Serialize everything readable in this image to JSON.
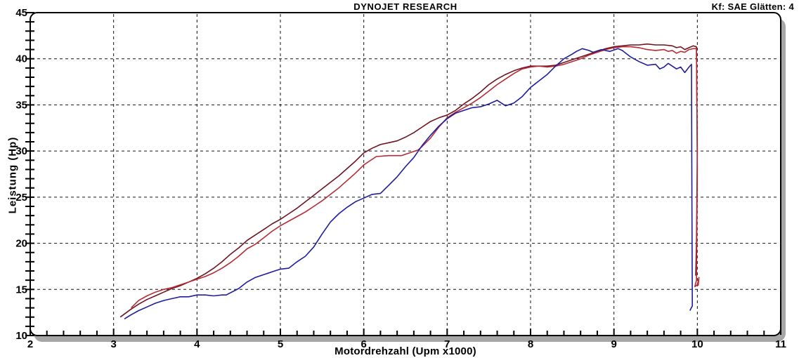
{
  "header": {
    "title": "DYNOJET RESEARCH",
    "settings_label": "Kf: SAE  Glätten: 4"
  },
  "chart_data": {
    "type": "line",
    "title": "DYNOJET RESEARCH",
    "xlabel": "Motordrehzahl (Upm x1000)",
    "ylabel": "Leistung (Hp)",
    "xlim": [
      2,
      11
    ],
    "ylim": [
      10,
      45
    ],
    "x_ticks": [
      2,
      3,
      4,
      5,
      6,
      7,
      8,
      9,
      10,
      11
    ],
    "y_ticks": [
      10,
      15,
      20,
      25,
      30,
      35,
      40,
      45
    ],
    "x_minor_step": 0.2,
    "y_minor_step": 1,
    "grid": "dashed black lines at interior major ticks",
    "legend": "none",
    "colors": {
      "background": "#ffffff",
      "frame_border": "#000000",
      "frame_shadow": "#a6a6a6",
      "grid": "#111111"
    },
    "series": [
      {
        "name": "dark-red",
        "color": "#6e1420",
        "points": [
          [
            3.08,
            12.0
          ],
          [
            3.2,
            12.8
          ],
          [
            3.3,
            13.4
          ],
          [
            3.4,
            13.9
          ],
          [
            3.5,
            14.3
          ],
          [
            3.6,
            14.7
          ],
          [
            3.7,
            15.1
          ],
          [
            3.8,
            15.4
          ],
          [
            3.9,
            15.8
          ],
          [
            4.0,
            16.2
          ],
          [
            4.1,
            16.7
          ],
          [
            4.2,
            17.3
          ],
          [
            4.3,
            18.0
          ],
          [
            4.4,
            18.8
          ],
          [
            4.5,
            19.5
          ],
          [
            4.6,
            20.3
          ],
          [
            4.7,
            20.9
          ],
          [
            4.8,
            21.5
          ],
          [
            4.9,
            22.1
          ],
          [
            5.0,
            22.6
          ],
          [
            5.1,
            23.2
          ],
          [
            5.2,
            23.8
          ],
          [
            5.3,
            24.5
          ],
          [
            5.4,
            25.2
          ],
          [
            5.5,
            25.9
          ],
          [
            5.6,
            26.6
          ],
          [
            5.7,
            27.3
          ],
          [
            5.8,
            28.1
          ],
          [
            5.9,
            28.9
          ],
          [
            6.0,
            29.8
          ],
          [
            6.1,
            30.3
          ],
          [
            6.2,
            30.7
          ],
          [
            6.3,
            30.9
          ],
          [
            6.4,
            31.1
          ],
          [
            6.5,
            31.5
          ],
          [
            6.6,
            32.0
          ],
          [
            6.7,
            32.6
          ],
          [
            6.8,
            33.2
          ],
          [
            6.9,
            33.6
          ],
          [
            7.0,
            33.9
          ],
          [
            7.1,
            34.4
          ],
          [
            7.2,
            35.1
          ],
          [
            7.3,
            35.7
          ],
          [
            7.4,
            36.4
          ],
          [
            7.5,
            37.2
          ],
          [
            7.6,
            37.8
          ],
          [
            7.7,
            38.3
          ],
          [
            7.8,
            38.7
          ],
          [
            7.9,
            39.0
          ],
          [
            8.0,
            39.2
          ],
          [
            8.1,
            39.2
          ],
          [
            8.2,
            39.2
          ],
          [
            8.3,
            39.3
          ],
          [
            8.4,
            39.6
          ],
          [
            8.5,
            39.9
          ],
          [
            8.6,
            40.2
          ],
          [
            8.7,
            40.5
          ],
          [
            8.8,
            40.8
          ],
          [
            8.9,
            41.1
          ],
          [
            9.0,
            41.3
          ],
          [
            9.1,
            41.4
          ],
          [
            9.2,
            41.5
          ],
          [
            9.3,
            41.5
          ],
          [
            9.4,
            41.6
          ],
          [
            9.5,
            41.5
          ],
          [
            9.6,
            41.5
          ],
          [
            9.7,
            41.4
          ],
          [
            9.75,
            41.2
          ],
          [
            9.8,
            41.3
          ],
          [
            9.85,
            41.0
          ],
          [
            9.9,
            41.2
          ],
          [
            9.95,
            41.4
          ],
          [
            9.99,
            41.3
          ],
          [
            10.0,
            30.0
          ],
          [
            9.99,
            20.0
          ],
          [
            9.98,
            16.5
          ]
        ]
      },
      {
        "name": "red",
        "color": "#b52b33",
        "points": [
          [
            3.21,
            13.0
          ],
          [
            3.3,
            13.8
          ],
          [
            3.4,
            14.3
          ],
          [
            3.5,
            14.7
          ],
          [
            3.6,
            15.0
          ],
          [
            3.7,
            15.2
          ],
          [
            3.8,
            15.5
          ],
          [
            3.9,
            15.8
          ],
          [
            4.0,
            16.1
          ],
          [
            4.1,
            16.4
          ],
          [
            4.2,
            16.8
          ],
          [
            4.3,
            17.3
          ],
          [
            4.4,
            17.9
          ],
          [
            4.5,
            18.6
          ],
          [
            4.6,
            19.4
          ],
          [
            4.7,
            19.9
          ],
          [
            4.8,
            20.6
          ],
          [
            4.9,
            21.3
          ],
          [
            5.0,
            21.9
          ],
          [
            5.1,
            22.4
          ],
          [
            5.2,
            22.9
          ],
          [
            5.3,
            23.4
          ],
          [
            5.4,
            24.0
          ],
          [
            5.5,
            24.6
          ],
          [
            5.6,
            25.3
          ],
          [
            5.7,
            26.0
          ],
          [
            5.8,
            26.8
          ],
          [
            5.9,
            27.6
          ],
          [
            6.0,
            28.5
          ],
          [
            6.1,
            29.1
          ],
          [
            6.15,
            29.4
          ],
          [
            6.3,
            29.5
          ],
          [
            6.45,
            29.5
          ],
          [
            6.55,
            29.8
          ],
          [
            6.65,
            30.1
          ],
          [
            6.7,
            30.5
          ],
          [
            6.8,
            31.4
          ],
          [
            6.9,
            32.6
          ],
          [
            7.0,
            33.6
          ],
          [
            7.1,
            34.2
          ],
          [
            7.2,
            34.7
          ],
          [
            7.3,
            35.2
          ],
          [
            7.4,
            35.8
          ],
          [
            7.5,
            36.5
          ],
          [
            7.6,
            37.2
          ],
          [
            7.7,
            37.8
          ],
          [
            7.8,
            38.4
          ],
          [
            7.9,
            38.9
          ],
          [
            8.0,
            39.1
          ],
          [
            8.1,
            39.2
          ],
          [
            8.2,
            39.1
          ],
          [
            8.3,
            39.2
          ],
          [
            8.4,
            39.4
          ],
          [
            8.5,
            39.7
          ],
          [
            8.6,
            40.0
          ],
          [
            8.7,
            40.4
          ],
          [
            8.8,
            40.7
          ],
          [
            8.9,
            41.0
          ],
          [
            9.0,
            41.2
          ],
          [
            9.1,
            41.3
          ],
          [
            9.2,
            41.3
          ],
          [
            9.3,
            41.2
          ],
          [
            9.4,
            41.0
          ],
          [
            9.5,
            40.9
          ],
          [
            9.6,
            41.0
          ],
          [
            9.65,
            40.8
          ],
          [
            9.7,
            40.9
          ],
          [
            9.75,
            40.6
          ],
          [
            9.8,
            40.8
          ],
          [
            9.85,
            40.7
          ],
          [
            9.9,
            41.0
          ],
          [
            9.95,
            41.1
          ],
          [
            9.99,
            41.1
          ],
          [
            10.0,
            28.0
          ],
          [
            9.99,
            16.0
          ],
          [
            9.97,
            15.3
          ],
          [
            10.0,
            15.5
          ],
          [
            10.02,
            16.3
          ],
          [
            10.01,
            15.4
          ]
        ]
      },
      {
        "name": "blue",
        "color": "#1d1d9e",
        "points": [
          [
            3.13,
            11.8
          ],
          [
            3.2,
            12.2
          ],
          [
            3.3,
            12.7
          ],
          [
            3.4,
            13.1
          ],
          [
            3.5,
            13.5
          ],
          [
            3.6,
            13.8
          ],
          [
            3.7,
            14.0
          ],
          [
            3.8,
            14.2
          ],
          [
            3.9,
            14.2
          ],
          [
            4.0,
            14.4
          ],
          [
            4.1,
            14.4
          ],
          [
            4.2,
            14.3
          ],
          [
            4.3,
            14.4
          ],
          [
            4.35,
            14.4
          ],
          [
            4.5,
            15.1
          ],
          [
            4.6,
            15.8
          ],
          [
            4.7,
            16.3
          ],
          [
            4.8,
            16.6
          ],
          [
            4.9,
            16.9
          ],
          [
            5.0,
            17.2
          ],
          [
            5.1,
            17.3
          ],
          [
            5.2,
            18.0
          ],
          [
            5.3,
            18.6
          ],
          [
            5.4,
            19.6
          ],
          [
            5.5,
            21.0
          ],
          [
            5.6,
            22.3
          ],
          [
            5.7,
            23.2
          ],
          [
            5.8,
            23.9
          ],
          [
            5.9,
            24.5
          ],
          [
            6.0,
            24.9
          ],
          [
            6.1,
            25.3
          ],
          [
            6.2,
            25.4
          ],
          [
            6.3,
            26.3
          ],
          [
            6.4,
            27.2
          ],
          [
            6.5,
            28.3
          ],
          [
            6.6,
            29.3
          ],
          [
            6.7,
            30.6
          ],
          [
            6.8,
            31.7
          ],
          [
            6.9,
            32.7
          ],
          [
            7.0,
            33.5
          ],
          [
            7.1,
            34.1
          ],
          [
            7.2,
            34.4
          ],
          [
            7.3,
            34.7
          ],
          [
            7.4,
            34.8
          ],
          [
            7.5,
            35.1
          ],
          [
            7.6,
            35.5
          ],
          [
            7.7,
            34.9
          ],
          [
            7.8,
            35.2
          ],
          [
            7.9,
            35.9
          ],
          [
            8.0,
            36.9
          ],
          [
            8.1,
            37.6
          ],
          [
            8.2,
            38.3
          ],
          [
            8.3,
            39.2
          ],
          [
            8.4,
            40.0
          ],
          [
            8.5,
            40.5
          ],
          [
            8.55,
            40.8
          ],
          [
            8.62,
            41.1
          ],
          [
            8.7,
            40.9
          ],
          [
            8.75,
            40.7
          ],
          [
            8.85,
            41.0
          ],
          [
            8.95,
            40.8
          ],
          [
            9.05,
            41.1
          ],
          [
            9.1,
            40.9
          ],
          [
            9.2,
            40.2
          ],
          [
            9.3,
            39.7
          ],
          [
            9.4,
            39.3
          ],
          [
            9.5,
            39.4
          ],
          [
            9.55,
            38.9
          ],
          [
            9.6,
            39.1
          ],
          [
            9.65,
            39.5
          ],
          [
            9.7,
            39.2
          ],
          [
            9.75,
            38.9
          ],
          [
            9.8,
            39.1
          ],
          [
            9.85,
            38.5
          ],
          [
            9.9,
            39.1
          ],
          [
            9.93,
            39.4
          ],
          [
            9.935,
            25.0
          ],
          [
            9.94,
            13.2
          ],
          [
            9.91,
            12.7
          ]
        ]
      }
    ]
  }
}
